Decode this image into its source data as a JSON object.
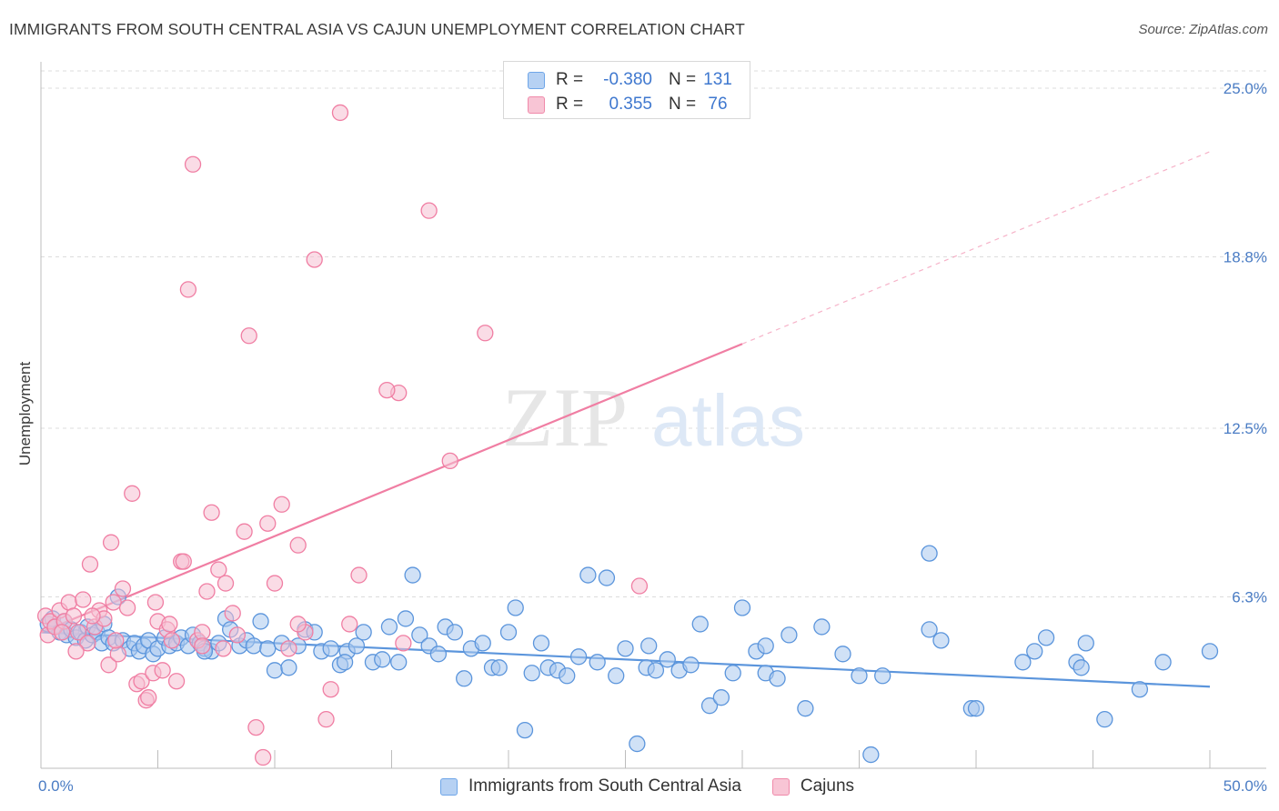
{
  "title": "IMMIGRANTS FROM SOUTH CENTRAL ASIA VS CAJUN UNEMPLOYMENT CORRELATION CHART",
  "source": "Source: ZipAtlas.com",
  "watermark": {
    "zip": "ZIP",
    "atlas": "atlas"
  },
  "legend": {
    "rows": [
      {
        "r_label": "R =",
        "r_value": "-0.380",
        "n_label": "N =",
        "n_value": "131",
        "color": "#6fa6e8",
        "fill": "#b6d1f3"
      },
      {
        "r_label": "R =",
        "r_value": "0.355",
        "n_label": "N =",
        "n_value": "76",
        "color": "#f08aaa",
        "fill": "#f8c5d5"
      }
    ]
  },
  "chart_data": {
    "type": "scatter",
    "xlabel": "",
    "ylabel": "Unemployment",
    "xlim": [
      0,
      50
    ],
    "ylim": [
      0,
      25
    ],
    "x_ticks": [
      "0.0%",
      "50.0%"
    ],
    "y_ticks": [
      {
        "value": 6.3,
        "label": "6.3%"
      },
      {
        "value": 12.5,
        "label": "12.5%"
      },
      {
        "value": 18.8,
        "label": "18.8%"
      },
      {
        "value": 25.0,
        "label": "25.0%"
      }
    ],
    "grid": "horizontal dashed",
    "legend_position": "top-center",
    "series": [
      {
        "name": "Immigrants from South Central Asia",
        "color": "#5b95dc",
        "fill": "#a9c8ef",
        "trend": {
          "x0": 0,
          "y0": 5.0,
          "x1": 50,
          "y1": 3.0,
          "dashed_to": 50
        },
        "points": [
          [
            0.3,
            5.3
          ],
          [
            0.5,
            5.5
          ],
          [
            0.6,
            5.2
          ],
          [
            0.8,
            5.0
          ],
          [
            1.0,
            5.4
          ],
          [
            1.1,
            4.9
          ],
          [
            1.3,
            5.1
          ],
          [
            1.5,
            4.8
          ],
          [
            1.7,
            5.0
          ],
          [
            1.9,
            4.7
          ],
          [
            2.0,
            5.2
          ],
          [
            2.2,
            4.9
          ],
          [
            2.4,
            5.0
          ],
          [
            2.6,
            4.6
          ],
          [
            2.7,
            5.3
          ],
          [
            2.9,
            4.8
          ],
          [
            3.1,
            4.6
          ],
          [
            3.3,
            6.3
          ],
          [
            3.5,
            4.7
          ],
          [
            3.8,
            4.4
          ],
          [
            4.0,
            4.6
          ],
          [
            4.2,
            4.3
          ],
          [
            4.4,
            4.5
          ],
          [
            4.6,
            4.7
          ],
          [
            4.8,
            4.2
          ],
          [
            5.0,
            4.4
          ],
          [
            5.3,
            4.8
          ],
          [
            5.5,
            4.5
          ],
          [
            5.8,
            4.6
          ],
          [
            6.0,
            4.8
          ],
          [
            6.3,
            4.5
          ],
          [
            6.5,
            4.9
          ],
          [
            6.8,
            4.6
          ],
          [
            7.0,
            4.4
          ],
          [
            7.3,
            4.3
          ],
          [
            7.6,
            4.6
          ],
          [
            7.9,
            5.5
          ],
          [
            8.1,
            5.1
          ],
          [
            8.5,
            4.5
          ],
          [
            8.8,
            4.7
          ],
          [
            9.1,
            4.5
          ],
          [
            9.4,
            5.4
          ],
          [
            9.7,
            4.4
          ],
          [
            10.0,
            3.6
          ],
          [
            10.3,
            4.6
          ],
          [
            10.6,
            3.7
          ],
          [
            11.0,
            4.5
          ],
          [
            11.3,
            5.1
          ],
          [
            11.7,
            5.0
          ],
          [
            12.0,
            4.3
          ],
          [
            12.4,
            4.4
          ],
          [
            12.8,
            3.8
          ],
          [
            13.1,
            4.3
          ],
          [
            13.5,
            4.5
          ],
          [
            13.8,
            5.0
          ],
          [
            14.2,
            3.9
          ],
          [
            14.6,
            4.0
          ],
          [
            14.9,
            5.2
          ],
          [
            15.3,
            3.9
          ],
          [
            15.6,
            5.5
          ],
          [
            15.9,
            7.1
          ],
          [
            16.2,
            4.9
          ],
          [
            16.6,
            4.5
          ],
          [
            17.0,
            4.2
          ],
          [
            17.3,
            5.2
          ],
          [
            17.7,
            5.0
          ],
          [
            18.1,
            3.3
          ],
          [
            18.4,
            4.4
          ],
          [
            18.9,
            4.6
          ],
          [
            19.3,
            3.7
          ],
          [
            19.6,
            3.7
          ],
          [
            20.0,
            5.0
          ],
          [
            20.3,
            5.9
          ],
          [
            20.7,
            1.4
          ],
          [
            21.0,
            3.5
          ],
          [
            21.4,
            4.6
          ],
          [
            21.7,
            3.7
          ],
          [
            22.1,
            3.6
          ],
          [
            22.5,
            3.4
          ],
          [
            23.0,
            4.1
          ],
          [
            23.4,
            7.1
          ],
          [
            23.8,
            3.9
          ],
          [
            24.2,
            7.0
          ],
          [
            24.6,
            3.4
          ],
          [
            25.0,
            4.4
          ],
          [
            25.5,
            0.9
          ],
          [
            25.9,
            3.7
          ],
          [
            26.3,
            3.6
          ],
          [
            26.8,
            4.0
          ],
          [
            27.3,
            3.6
          ],
          [
            27.8,
            3.8
          ],
          [
            28.2,
            5.3
          ],
          [
            28.6,
            2.3
          ],
          [
            29.1,
            2.6
          ],
          [
            29.6,
            3.5
          ],
          [
            30.0,
            5.9
          ],
          [
            30.6,
            4.3
          ],
          [
            31.0,
            3.5
          ],
          [
            31.5,
            3.3
          ],
          [
            32.0,
            4.9
          ],
          [
            32.7,
            2.2
          ],
          [
            33.4,
            5.2
          ],
          [
            34.3,
            4.2
          ],
          [
            35.0,
            3.4
          ],
          [
            35.5,
            0.5
          ],
          [
            36.0,
            3.4
          ],
          [
            38.0,
            7.9
          ],
          [
            38.0,
            5.1
          ],
          [
            39.8,
            2.2
          ],
          [
            40.0,
            2.2
          ],
          [
            42.0,
            3.9
          ],
          [
            42.5,
            4.3
          ],
          [
            43.0,
            4.8
          ],
          [
            44.3,
            3.9
          ],
          [
            44.5,
            3.7
          ],
          [
            44.7,
            4.6
          ],
          [
            45.5,
            1.8
          ],
          [
            47.0,
            2.9
          ],
          [
            48.0,
            3.9
          ],
          [
            50.0,
            4.3
          ],
          [
            38.5,
            4.7
          ],
          [
            31.0,
            4.5
          ],
          [
            26.0,
            4.5
          ],
          [
            13.0,
            3.9
          ],
          [
            7.0,
            4.3
          ]
        ]
      },
      {
        "name": "Cajuns",
        "color": "#f07ea3",
        "fill": "#f6bfd1",
        "trend": {
          "x0": 0,
          "y0": 5.0,
          "x1": 30,
          "y1": 15.6,
          "dashed_to": 50
        },
        "points": [
          [
            0.2,
            5.6
          ],
          [
            0.3,
            4.9
          ],
          [
            0.4,
            5.4
          ],
          [
            0.6,
            5.2
          ],
          [
            0.8,
            5.8
          ],
          [
            1.0,
            5.4
          ],
          [
            1.2,
            6.1
          ],
          [
            1.4,
            5.6
          ],
          [
            1.6,
            5.0
          ],
          [
            1.8,
            6.2
          ],
          [
            2.0,
            4.6
          ],
          [
            2.1,
            7.5
          ],
          [
            2.3,
            5.2
          ],
          [
            2.5,
            5.8
          ],
          [
            2.7,
            5.5
          ],
          [
            2.9,
            3.8
          ],
          [
            3.1,
            6.1
          ],
          [
            3.3,
            4.2
          ],
          [
            3.5,
            6.6
          ],
          [
            3.7,
            5.9
          ],
          [
            3.9,
            10.1
          ],
          [
            4.1,
            3.1
          ],
          [
            4.3,
            3.2
          ],
          [
            4.5,
            2.5
          ],
          [
            4.8,
            3.5
          ],
          [
            5.0,
            5.4
          ],
          [
            5.2,
            3.6
          ],
          [
            5.4,
            5.1
          ],
          [
            5.6,
            4.7
          ],
          [
            5.8,
            3.2
          ],
          [
            6.0,
            7.6
          ],
          [
            6.1,
            7.6
          ],
          [
            6.3,
            17.6
          ],
          [
            6.5,
            22.2
          ],
          [
            6.7,
            4.7
          ],
          [
            6.9,
            5.0
          ],
          [
            7.1,
            6.5
          ],
          [
            7.3,
            9.4
          ],
          [
            7.6,
            7.3
          ],
          [
            7.9,
            6.8
          ],
          [
            8.2,
            5.7
          ],
          [
            8.4,
            4.9
          ],
          [
            8.7,
            8.7
          ],
          [
            8.9,
            15.9
          ],
          [
            9.2,
            1.5
          ],
          [
            9.5,
            0.4
          ],
          [
            9.7,
            9.0
          ],
          [
            10.0,
            6.8
          ],
          [
            10.3,
            9.7
          ],
          [
            10.6,
            4.4
          ],
          [
            11.0,
            8.2
          ],
          [
            11.3,
            5.0
          ],
          [
            11.7,
            18.7
          ],
          [
            12.2,
            1.8
          ],
          [
            12.4,
            2.9
          ],
          [
            12.8,
            24.1
          ],
          [
            13.2,
            5.3
          ],
          [
            13.6,
            7.1
          ],
          [
            15.3,
            13.8
          ],
          [
            14.8,
            13.9
          ],
          [
            15.5,
            4.6
          ],
          [
            16.6,
            20.5
          ],
          [
            17.5,
            11.3
          ],
          [
            19.0,
            16.0
          ],
          [
            25.6,
            6.7
          ],
          [
            3.0,
            8.3
          ],
          [
            2.2,
            5.6
          ],
          [
            0.9,
            5.0
          ],
          [
            1.5,
            4.3
          ],
          [
            4.6,
            2.6
          ],
          [
            5.5,
            5.3
          ],
          [
            6.9,
            4.5
          ],
          [
            7.8,
            4.4
          ],
          [
            3.2,
            4.7
          ],
          [
            4.9,
            6.1
          ],
          [
            11.0,
            5.3
          ]
        ]
      }
    ]
  }
}
